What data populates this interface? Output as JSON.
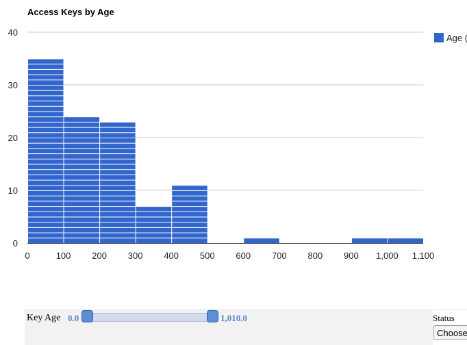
{
  "chart_data": {
    "type": "bar",
    "title": "Access Keys by Age",
    "xlabel": "",
    "ylabel": "",
    "xlim": [
      0,
      1100
    ],
    "ylim": [
      0,
      40
    ],
    "x_ticks": [
      "0",
      "100",
      "200",
      "300",
      "400",
      "500",
      "600",
      "700",
      "800",
      "900",
      "1,000",
      "1,100"
    ],
    "y_ticks": [
      "0",
      "10",
      "20",
      "30",
      "40"
    ],
    "bin_width": 100,
    "bins": [
      {
        "start": 0,
        "end": 100,
        "value": 35
      },
      {
        "start": 100,
        "end": 200,
        "value": 24
      },
      {
        "start": 200,
        "end": 300,
        "value": 23
      },
      {
        "start": 300,
        "end": 400,
        "value": 7
      },
      {
        "start": 400,
        "end": 500,
        "value": 11
      },
      {
        "start": 500,
        "end": 600,
        "value": 0
      },
      {
        "start": 600,
        "end": 700,
        "value": 1
      },
      {
        "start": 700,
        "end": 800,
        "value": 0
      },
      {
        "start": 800,
        "end": 900,
        "value": 0
      },
      {
        "start": 900,
        "end": 1000,
        "value": 1
      },
      {
        "start": 1000,
        "end": 1100,
        "value": 1
      }
    ],
    "series": [
      {
        "name": "Age (",
        "color": "#3366cc"
      }
    ],
    "legend": "right",
    "grid": true
  },
  "filters": {
    "key_age": {
      "label": "Key Age",
      "min_text": "0.0",
      "max_text": "1,010.0"
    },
    "status": {
      "label": "Status",
      "selected": "Choose"
    }
  }
}
